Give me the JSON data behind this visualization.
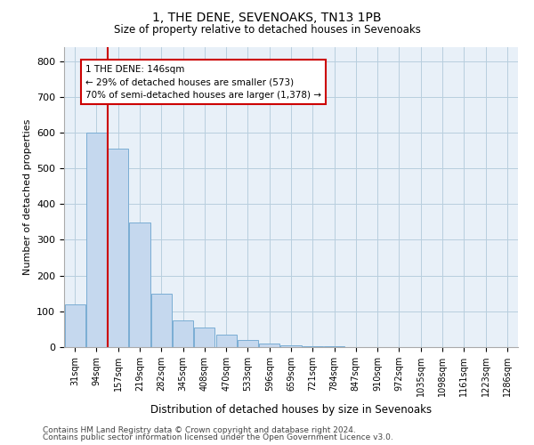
{
  "title": "1, THE DENE, SEVENOAKS, TN13 1PB",
  "subtitle": "Size of property relative to detached houses in Sevenoaks",
  "xlabel": "Distribution of detached houses by size in Sevenoaks",
  "ylabel": "Number of detached properties",
  "categories": [
    "31sqm",
    "94sqm",
    "157sqm",
    "219sqm",
    "282sqm",
    "345sqm",
    "408sqm",
    "470sqm",
    "533sqm",
    "596sqm",
    "659sqm",
    "721sqm",
    "784sqm",
    "847sqm",
    "910sqm",
    "972sqm",
    "1035sqm",
    "1098sqm",
    "1161sqm",
    "1223sqm",
    "1286sqm"
  ],
  "values": [
    120,
    600,
    555,
    348,
    150,
    75,
    55,
    35,
    20,
    10,
    5,
    3,
    2,
    1,
    0,
    0,
    0,
    0,
    0,
    0,
    0
  ],
  "bar_color": "#c5d8ee",
  "bar_edge_color": "#7aadd4",
  "vline_color": "#cc0000",
  "vline_xindex": 1.5,
  "annotation_text": "1 THE DENE: 146sqm\n← 29% of detached houses are smaller (573)\n70% of semi-detached houses are larger (1,378) →",
  "ylim": [
    0,
    840
  ],
  "yticks": [
    0,
    100,
    200,
    300,
    400,
    500,
    600,
    700,
    800
  ],
  "background_color": "#ffffff",
  "plot_bg_color": "#e8f0f8",
  "grid_color": "#b8cede",
  "footer1": "Contains HM Land Registry data © Crown copyright and database right 2024.",
  "footer2": "Contains public sector information licensed under the Open Government Licence v3.0."
}
